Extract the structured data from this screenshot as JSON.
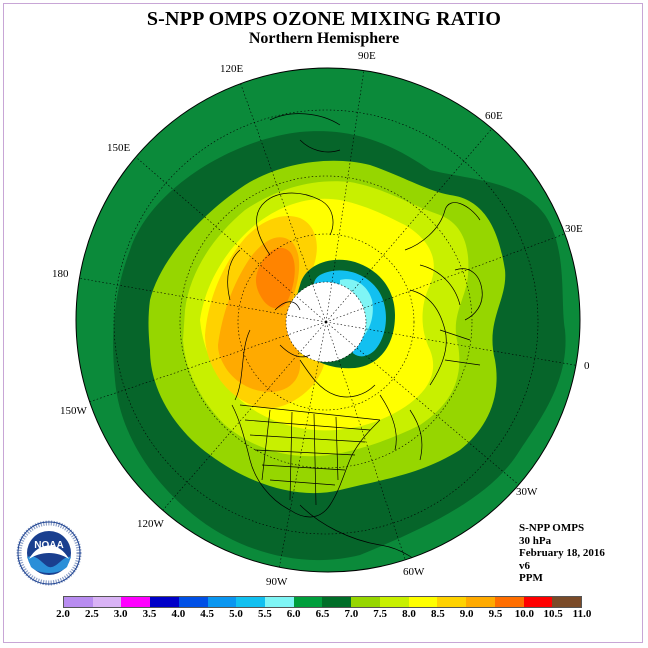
{
  "title": "S-NPP OMPS OZONE MIXING RATIO",
  "subtitle": "Northern Hemisphere",
  "longitudes": [
    {
      "label": "90E"
    },
    {
      "label": "60E"
    },
    {
      "label": "30E"
    },
    {
      "label": "0"
    },
    {
      "label": "30W"
    },
    {
      "label": "60W"
    },
    {
      "label": "90W"
    },
    {
      "label": "120W"
    },
    {
      "label": "150W"
    },
    {
      "label": "180"
    },
    {
      "label": "150E"
    },
    {
      "label": "120E"
    }
  ],
  "info": {
    "instrument": "S-NPP OMPS",
    "level": "30 hPa",
    "date": "February 18, 2016",
    "version": "v6",
    "units": "PPM"
  },
  "logo": {
    "text": "NOAA",
    "ring_text": "NATIONAL OCEANIC AND ATMOSPHERIC ADMINISTRATION · U.S. DEPARTMENT OF COMMERCE"
  },
  "legend": {
    "ticks": [
      "2.0",
      "2.5",
      "3.0",
      "3.5",
      "4.0",
      "4.5",
      "5.0",
      "5.5",
      "6.0",
      "6.5",
      "7.0",
      "7.5",
      "8.0",
      "8.5",
      "9.0",
      "9.5",
      "10.0",
      "10.5",
      "11.0"
    ],
    "colors": [
      "#b88cf0",
      "#d9b3f5",
      "#ff00ff",
      "#0000c8",
      "#0050e6",
      "#0a96f0",
      "#12c0f0",
      "#7ff5f5",
      "#009e3c",
      "#006e28",
      "#96d600",
      "#c8f000",
      "#ffff00",
      "#ffd200",
      "#ffaa00",
      "#ff6e00",
      "#ff0000",
      "#7a4a28"
    ]
  },
  "map": {
    "field_levels": [
      {
        "range": "6.5-7.0",
        "color": "#0b8a3a"
      },
      {
        "range": "7.0-7.5",
        "color": "#06652a"
      },
      {
        "range": "7.5-8.0",
        "color": "#96d600"
      },
      {
        "range": "8.0-8.5",
        "color": "#c8f000"
      },
      {
        "range": "8.5-9.0",
        "color": "#ffff00"
      },
      {
        "range": "9.0-9.5",
        "color": "#ffd200"
      },
      {
        "range": "9.5-10.0",
        "color": "#ffaa00"
      },
      {
        "range": "10.0-10.5",
        "color": "#ff8400"
      },
      {
        "range": "low",
        "color": "#12c0f0"
      },
      {
        "range": "lower",
        "color": "#7ff5f5"
      }
    ]
  }
}
